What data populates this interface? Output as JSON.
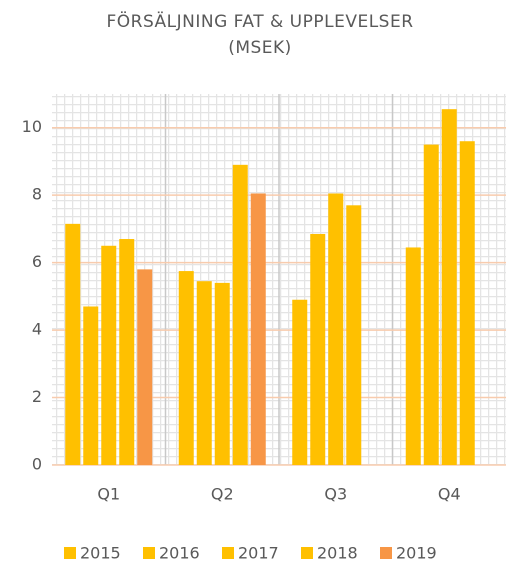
{
  "chart_data": {
    "type": "bar",
    "title": [
      "FÖRSÄLJNING FAT & UPPLEVELSER",
      "(MSEK)"
    ],
    "categories": [
      "Q1",
      "Q2",
      "Q3",
      "Q4"
    ],
    "series": [
      {
        "name": "2015",
        "color": "#FFC000",
        "values": [
          7.15,
          5.75,
          4.9,
          6.45
        ]
      },
      {
        "name": "2016",
        "color": "#FFC000",
        "values": [
          4.7,
          5.45,
          6.85,
          9.5
        ]
      },
      {
        "name": "2017",
        "color": "#FFC000",
        "values": [
          6.5,
          5.4,
          8.05,
          10.55
        ]
      },
      {
        "name": "2018",
        "color": "#FFC000",
        "values": [
          6.7,
          8.9,
          7.7,
          9.6
        ]
      },
      {
        "name": "2019",
        "color": "#F79646",
        "values": [
          5.8,
          8.05,
          null,
          null
        ]
      }
    ],
    "ylim": [
      0,
      11
    ],
    "yticks": [
      0,
      2,
      4,
      6,
      8,
      10
    ],
    "grid": true,
    "legend": "bottom"
  }
}
